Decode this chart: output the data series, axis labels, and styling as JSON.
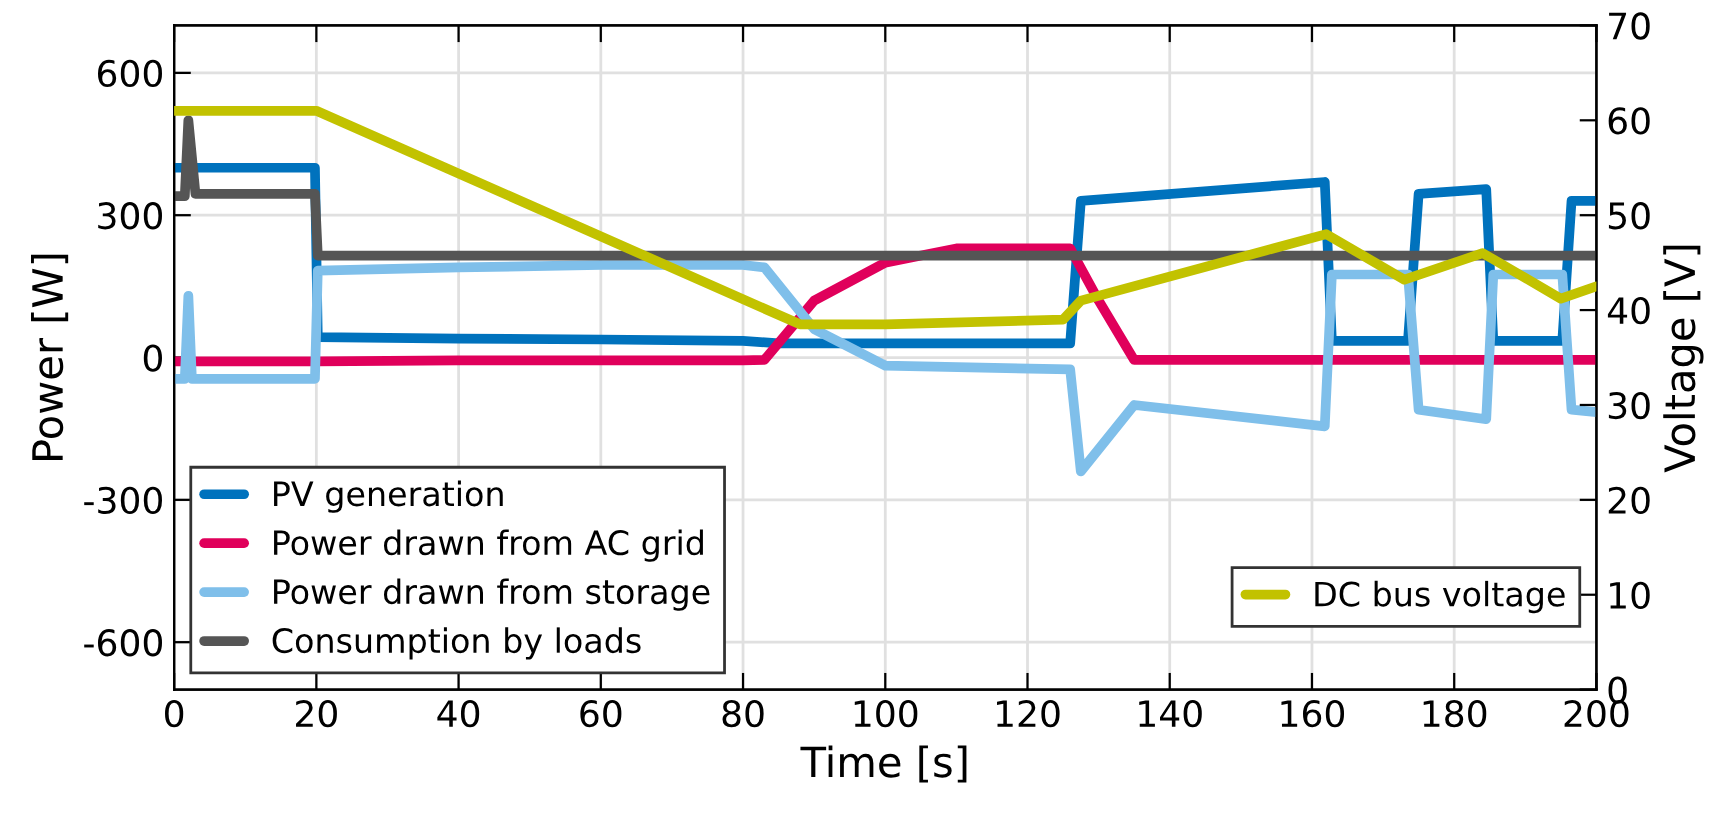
{
  "chart_data": {
    "type": "line",
    "xlabel": "Time [s]",
    "ylabel": "Power [W]",
    "y2label": "Voltage [V]",
    "xlim": [
      0,
      200
    ],
    "xticks": [
      0,
      20,
      40,
      60,
      80,
      100,
      120,
      140,
      160,
      180,
      200
    ],
    "ylim": [
      -700,
      700
    ],
    "yticks": [
      -600,
      -300,
      0,
      300,
      600
    ],
    "y2lim": [
      0,
      70
    ],
    "y2ticks": [
      0,
      10,
      20,
      30,
      40,
      50,
      60,
      70
    ],
    "grid": true,
    "legend": "bottom left",
    "line_style": "solid",
    "marker": "none",
    "series": [
      {
        "name": "PV generation",
        "color": "#0072bd",
        "x": [
          0,
          19.8,
          20.2,
          40,
          60,
          80,
          85,
          100,
          126,
          127.5,
          161.8,
          162.8,
          173.5,
          175,
          184.5,
          185.5,
          195.2,
          196.5,
          200
        ],
        "values": [
          400,
          400,
          43,
          40,
          38,
          35,
          30,
          30,
          30,
          330,
          370,
          35,
          35,
          345,
          355,
          35,
          35,
          330,
          330
        ]
      },
      {
        "name": "Power drawn from AC grid",
        "color": "#e0005b",
        "x": [
          0,
          20,
          40,
          60,
          80,
          83,
          90,
          100,
          110,
          126,
          130,
          135,
          150,
          170,
          200
        ],
        "values": [
          -8,
          -8,
          -6,
          -6,
          -6,
          -5,
          120,
          200,
          230,
          230,
          120,
          -5,
          -5,
          -5,
          -5
        ]
      },
      {
        "name": "Power drawn from storage",
        "color": "#7fbfea",
        "x": [
          0,
          1.5,
          2,
          2.5,
          19.8,
          20.2,
          40,
          60,
          80,
          83,
          90,
          100,
          126,
          127.5,
          135,
          161.8,
          162.8,
          173.5,
          175,
          184.5,
          185.5,
          195.2,
          196.5,
          200
        ],
        "values": [
          -45,
          -45,
          130,
          -45,
          -45,
          183,
          190,
          195,
          195,
          190,
          60,
          -17,
          -25,
          -240,
          -100,
          -145,
          175,
          175,
          -110,
          -130,
          175,
          175,
          -110,
          -115
        ]
      },
      {
        "name": "Consumption by loads",
        "color": "#555555",
        "x": [
          0,
          1.5,
          2,
          3,
          19.8,
          20.2,
          40,
          60,
          80,
          100,
          120,
          140,
          160,
          180,
          200
        ],
        "values": [
          340,
          340,
          500,
          345,
          345,
          215,
          215,
          215,
          215,
          215,
          215,
          215,
          215,
          215,
          215
        ]
      },
      {
        "name": "DC bus voltage",
        "color": "#c2c200",
        "axis": "y2",
        "x": [
          0,
          20,
          88,
          100,
          125,
          127.5,
          162,
          173,
          184,
          195,
          200
        ],
        "values": [
          61,
          61,
          38.5,
          38.5,
          39,
          41,
          48,
          43.2,
          46,
          41.2,
          42.5
        ]
      }
    ]
  }
}
